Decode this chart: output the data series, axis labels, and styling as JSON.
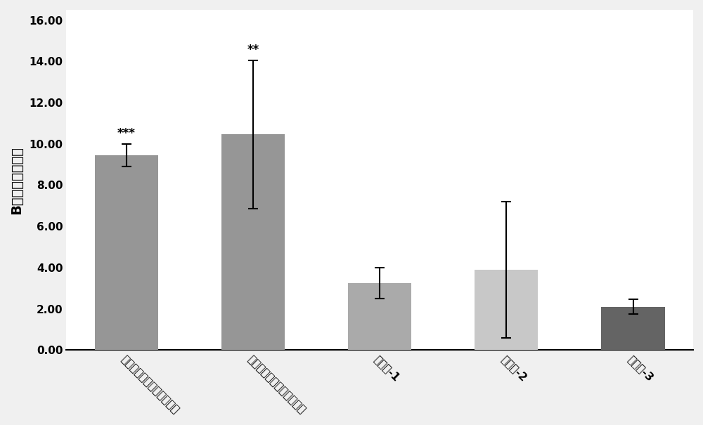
{
  "categories": [
    "光动力治疗组（高浓度组）",
    "光动力治疗组（低浓度组）",
    "对照组-1",
    "对照组-2",
    "对照组-3"
  ],
  "values": [
    9.45,
    10.45,
    3.25,
    3.9,
    2.1
  ],
  "errors": [
    0.55,
    3.6,
    0.75,
    3.3,
    0.35
  ],
  "bar_colors": [
    "#969696",
    "#969696",
    "#aaaaaa",
    "#c8c8c8",
    "#646464"
  ],
  "annotations": [
    "***",
    "**",
    "",
    "",
    ""
  ],
  "ylabel": "B细胞数量百分比",
  "ylim": [
    0,
    16.5
  ],
  "yticks": [
    0.0,
    2.0,
    4.0,
    6.0,
    8.0,
    10.0,
    12.0,
    14.0,
    16.0
  ],
  "background_color": "#ffffff",
  "outer_background": "#f0f0f0",
  "bar_width": 0.5,
  "annotation_fontsize": 12,
  "ylabel_fontsize": 14,
  "tick_fontsize": 11,
  "xlabel_rotation": -45,
  "capsize": 5
}
